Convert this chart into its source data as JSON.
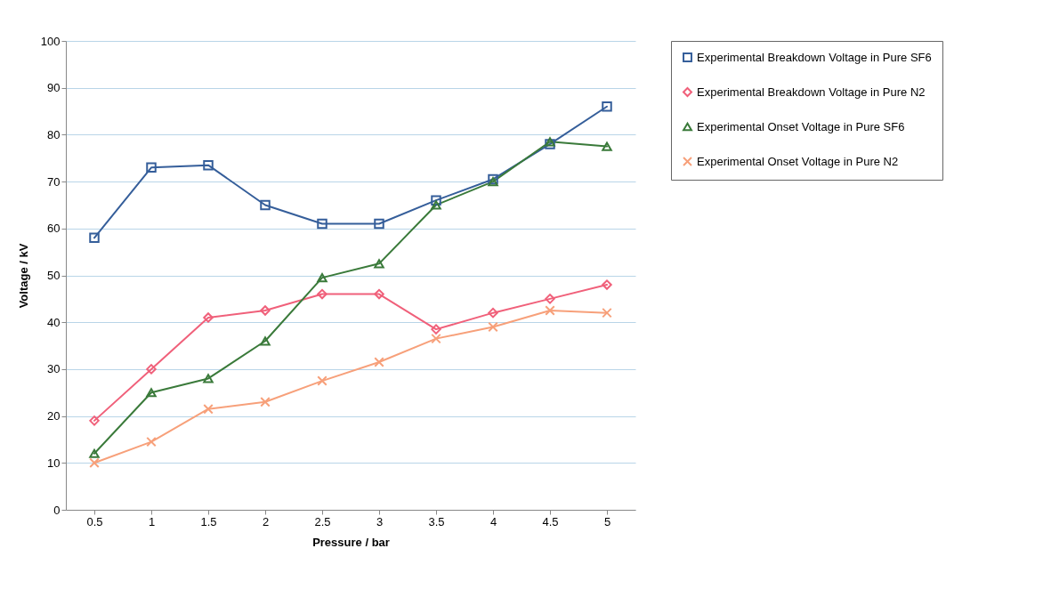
{
  "chart_data": {
    "type": "line",
    "xlabel": "Pressure / bar",
    "ylabel": "Voltage / kV",
    "categories": [
      "0.5",
      "1",
      "1.5",
      "2",
      "2.5",
      "3",
      "3.5",
      "4",
      "4.5",
      "5"
    ],
    "ylim": [
      0,
      100
    ],
    "yticks": [
      0,
      10,
      20,
      30,
      40,
      50,
      60,
      70,
      80,
      90,
      100
    ],
    "grid": "y",
    "legend": "right",
    "line_style": "solid",
    "series": [
      {
        "name": "Experimental Breakdown Voltage in Pure SF6",
        "color": "#355e9a",
        "marker": "square",
        "values": [
          58,
          73,
          73.5,
          65,
          61,
          61,
          66,
          70.5,
          78,
          86
        ]
      },
      {
        "name": "Experimental Breakdown Voltage in Pure N2",
        "color": "#f0607a",
        "marker": "diamond",
        "values": [
          19,
          30,
          41,
          42.5,
          46,
          46,
          38.5,
          42,
          45,
          48
        ]
      },
      {
        "name": "Experimental Onset Voltage in Pure SF6",
        "color": "#3a7a3a",
        "marker": "triangle",
        "values": [
          12,
          25,
          28,
          36,
          49.5,
          52.5,
          65,
          70,
          78.5,
          77.5
        ]
      },
      {
        "name": "Experimental Onset Voltage in Pure N2",
        "color": "#f7a07a",
        "marker": "cross",
        "values": [
          10,
          14.5,
          21.5,
          23,
          27.5,
          31.5,
          36.5,
          39,
          42.5,
          42
        ]
      }
    ]
  }
}
